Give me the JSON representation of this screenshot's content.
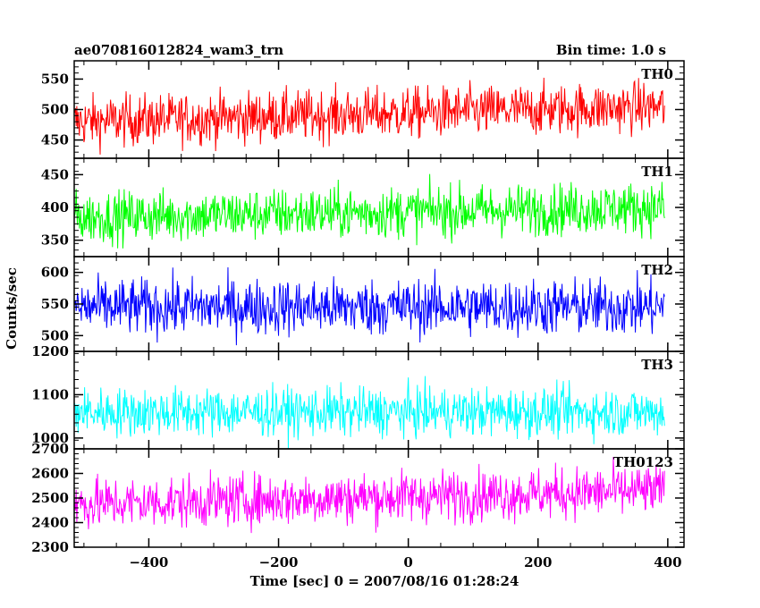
{
  "header": {
    "title": "ae070816012824_wam3_trn",
    "bin_time": "Bin time: 1.0 s"
  },
  "chart_data": {
    "type": "line",
    "shared_x_range": [
      -515,
      395
    ],
    "xlim": [
      -515,
      425
    ],
    "xlabel": "Time [sec] 0 = 2007/08/16 01:28:24",
    "ylabel": "Counts/sec",
    "x_tick_labels": [
      "−400",
      "−200",
      "0",
      "200",
      "400"
    ],
    "x_ticks": [
      -400,
      -200,
      0,
      200,
      400
    ],
    "panels": [
      {
        "name": "TH0",
        "color": "#ff0000",
        "ylim": [
          420,
          580
        ],
        "y_ticks": [
          450,
          500,
          550
        ],
        "y_tick_labels": [
          "450",
          "500",
          "550"
        ],
        "mean_start": 480,
        "mean_end": 505,
        "spread": 30
      },
      {
        "name": "TH1",
        "color": "#00ff00",
        "ylim": [
          325,
          475
        ],
        "y_ticks": [
          350,
          400,
          450
        ],
        "y_tick_labels": [
          "350",
          "400",
          "450"
        ],
        "mean_start": 385,
        "mean_end": 400,
        "spread": 28
      },
      {
        "name": "TH2",
        "color": "#0000ff",
        "ylim": [
          475,
          625
        ],
        "y_ticks": [
          500,
          550,
          600
        ],
        "y_tick_labels": [
          "500",
          "550",
          "600"
        ],
        "mean_start": 545,
        "mean_end": 545,
        "spread": 32
      },
      {
        "name": "TH3",
        "color": "#00ffff",
        "ylim": [
          975,
          1200
        ],
        "y_ticks": [
          1000,
          1100,
          1200
        ],
        "y_tick_labels": [
          "1000",
          "1100",
          "1200"
        ],
        "mean_start": 1060,
        "mean_end": 1060,
        "spread": 40
      },
      {
        "name": "TH0123",
        "color": "#ff00ff",
        "ylim": [
          2300,
          2700
        ],
        "y_ticks": [
          2300,
          2400,
          2500,
          2600,
          2700
        ],
        "y_tick_labels": [
          "2300",
          "2400",
          "2500",
          "2600",
          "2700"
        ],
        "mean_start": 2475,
        "mean_end": 2530,
        "spread": 75
      }
    ]
  }
}
